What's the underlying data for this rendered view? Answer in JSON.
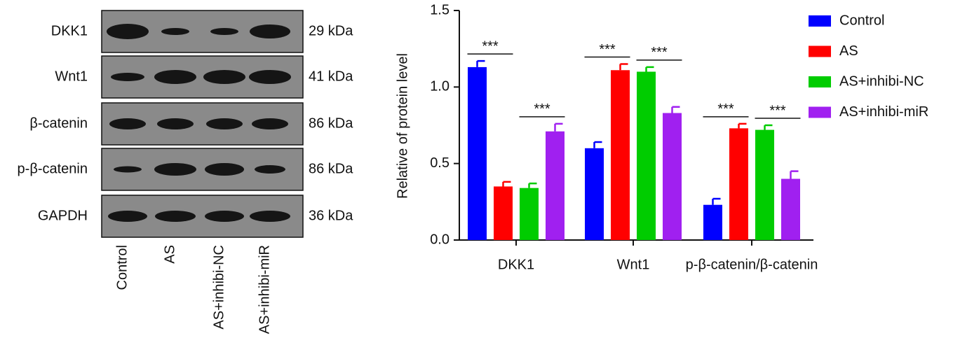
{
  "blot": {
    "rows": [
      {
        "label": "DKK1",
        "size": "29 kDa"
      },
      {
        "label": "Wnt1",
        "size": "41 kDa"
      },
      {
        "label": "β-catenin",
        "size": "86 kDa"
      },
      {
        "label": "p-β-catenin",
        "size": "86 kDa"
      },
      {
        "label": "GAPDH",
        "size": "36 kDa"
      }
    ],
    "lanes": [
      "Control",
      "AS",
      "AS+inhibi-NC",
      "AS+inhibi-miR"
    ]
  },
  "chart_data": {
    "type": "bar",
    "y_label": "Relative of protein level",
    "categories": [
      "DKK1",
      "Wnt1",
      "p-β-catenin/β-catenin"
    ],
    "series": [
      {
        "name": "Control",
        "color": "#0000ff",
        "values": [
          1.13,
          0.6,
          0.23
        ],
        "error": [
          0.04,
          0.04,
          0.04
        ]
      },
      {
        "name": "AS",
        "color": "#ff0000",
        "values": [
          0.35,
          1.11,
          0.73
        ],
        "error": [
          0.03,
          0.04,
          0.03
        ]
      },
      {
        "name": "AS+inhibi-NC",
        "color": "#00cc00",
        "values": [
          0.34,
          1.1,
          0.72
        ],
        "error": [
          0.03,
          0.03,
          0.03
        ]
      },
      {
        "name": "AS+inhibi-miR",
        "color": "#a020f0",
        "values": [
          0.71,
          0.83,
          0.4
        ],
        "error": [
          0.05,
          0.04,
          0.05
        ]
      }
    ],
    "ylim": [
      0,
      1.5
    ],
    "yticks": [
      {
        "value": 0,
        "label": "0.0"
      },
      0.5,
      {
        "value": 1,
        "label": "1.0"
      },
      1.5
    ],
    "annotations": [
      "***",
      "***",
      "***",
      "***",
      "***",
      "***"
    ],
    "legend": "right"
  }
}
